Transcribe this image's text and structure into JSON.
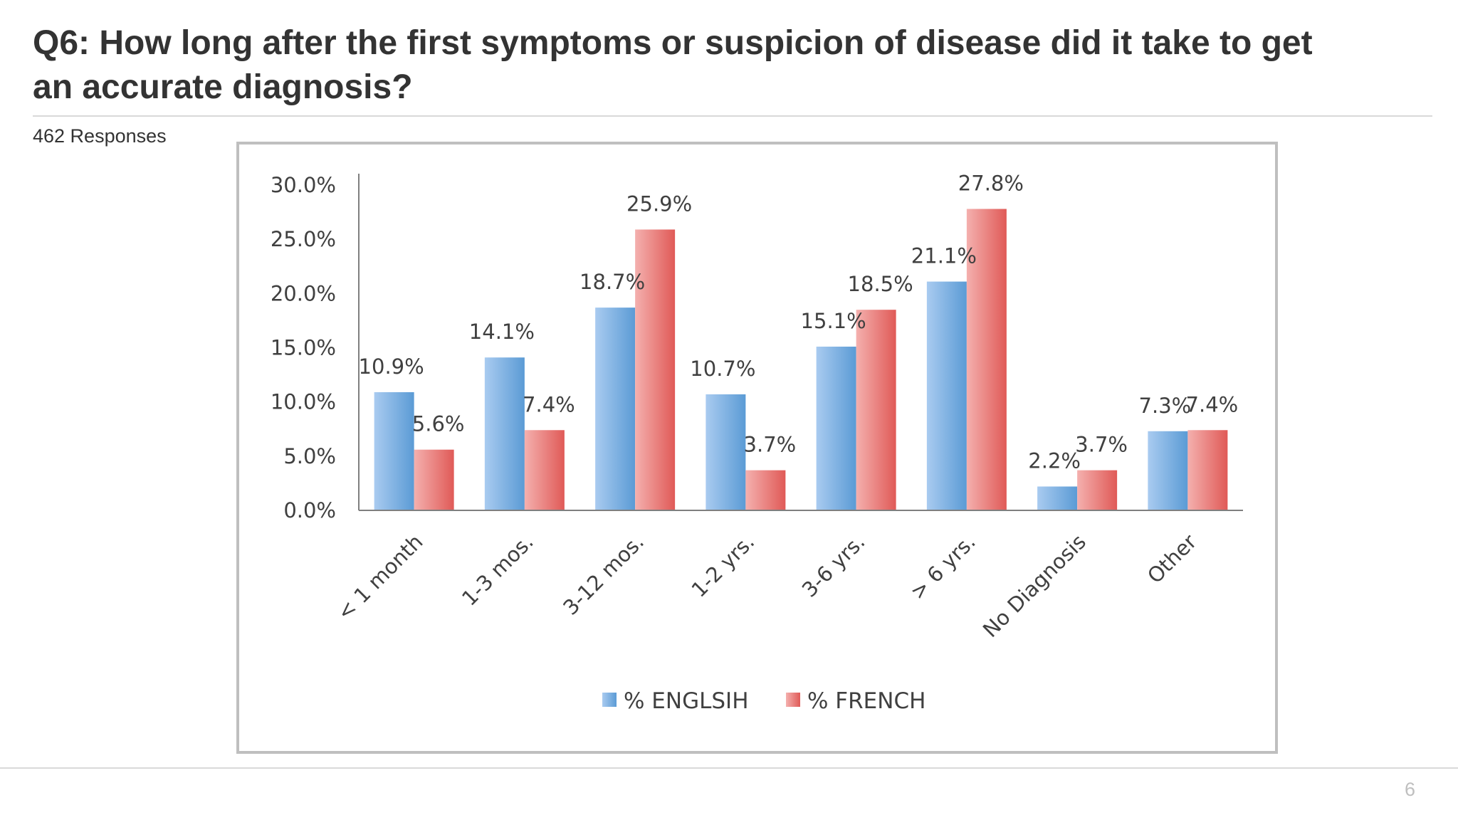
{
  "slide": {
    "title": "Q6: How long after the first symptoms or suspicion of disease did it take to get an accurate diagnosis?",
    "subtitle": "462 Responses",
    "page_number": "6"
  },
  "colors": {
    "english": "#5b9bd5",
    "french": "#e8716f",
    "axis": "#7f7f7f",
    "frame": "#bfbfbf"
  },
  "chart_data": {
    "type": "bar",
    "title": "",
    "xlabel": "",
    "ylabel": "",
    "ylim": [
      0,
      30
    ],
    "yticks": [
      "0.0%",
      "5.0%",
      "10.0%",
      "15.0%",
      "20.0%",
      "25.0%",
      "30.0%"
    ],
    "grid": false,
    "legend": "bottom",
    "categories": [
      "< 1 month",
      "1-3 mos.",
      "3-12 mos.",
      "1-2 yrs.",
      "3-6 yrs.",
      "> 6 yrs.",
      "No Diagnosis",
      "Other"
    ],
    "series": [
      {
        "name": "% ENGLSIH",
        "values": [
          10.9,
          14.1,
          18.7,
          10.7,
          15.1,
          21.1,
          2.2,
          7.3
        ],
        "labels": [
          "10.9%",
          "14.1%",
          "18.7%",
          "10.7%",
          "15.1%",
          "21.1%",
          "2.2%",
          "7.3%"
        ]
      },
      {
        "name": "% FRENCH",
        "values": [
          5.6,
          7.4,
          25.9,
          3.7,
          18.5,
          27.8,
          3.7,
          7.4
        ],
        "labels": [
          "5.6%",
          "7.4%",
          "25.9%",
          "3.7%",
          "18.5%",
          "27.8%",
          "3.7%",
          "7.4%"
        ]
      }
    ]
  }
}
